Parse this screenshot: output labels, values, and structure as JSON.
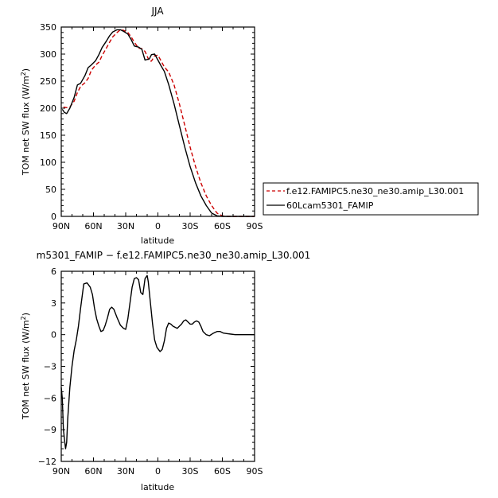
{
  "chart_data": [
    {
      "type": "line",
      "title": "JJA",
      "xlabel": "latitude",
      "ylabel": "TOM net SW flux (W/m²)",
      "xlim": [
        90,
        -90
      ],
      "ylim": [
        0,
        350
      ],
      "x_ticks": [
        "90N",
        "60N",
        "30N",
        "0",
        "30S",
        "60S",
        "90S"
      ],
      "x_tick_values": [
        90,
        60,
        30,
        0,
        -30,
        -60,
        -90
      ],
      "y_ticks": [
        "0",
        "50",
        "100",
        "150",
        "200",
        "250",
        "300",
        "350"
      ],
      "y_tick_values": [
        0,
        50,
        100,
        150,
        200,
        250,
        300,
        350
      ],
      "legend_position": "right",
      "series": [
        {
          "name": "f.e12.FAMIPC5.ne30_ne30.amip_L30.001",
          "color": "#cc0000",
          "dash": "dashed",
          "x": [
            88,
            85,
            82,
            78,
            75,
            72,
            68,
            65,
            62,
            58,
            55,
            52,
            48,
            45,
            42,
            38,
            35,
            32,
            28,
            25,
            22,
            18,
            15,
            12,
            8,
            6,
            3,
            0,
            -3,
            -6,
            -10,
            -15,
            -20,
            -25,
            -30,
            -35,
            -40,
            -45,
            -50,
            -55,
            -60,
            -65,
            -70,
            -75,
            -80,
            -85,
            -90
          ],
          "y": [
            202,
            201,
            202,
            213,
            229,
            240,
            247,
            255,
            270,
            280,
            285,
            297,
            311,
            322,
            332,
            340,
            345,
            344,
            340,
            332,
            322,
            311,
            310,
            305,
            287,
            287,
            297,
            298,
            287,
            276,
            267,
            243,
            208,
            168,
            128,
            92,
            62,
            38,
            20,
            6,
            1,
            0,
            0,
            0,
            0,
            0,
            0
          ]
        },
        {
          "name": "60Lcam5301_FAMIP",
          "color": "#000000",
          "dash": "solid",
          "x": [
            89,
            87,
            85,
            82,
            78,
            75,
            72,
            68,
            65,
            62,
            58,
            55,
            52,
            48,
            45,
            42,
            38,
            35,
            32,
            28,
            25,
            22,
            18,
            15,
            12,
            8,
            6,
            3,
            0,
            -3,
            -6,
            -10,
            -15,
            -20,
            -25,
            -30,
            -35,
            -40,
            -45,
            -50,
            -55,
            -60,
            -65,
            -70,
            -75,
            -80,
            -85,
            -90
          ],
          "y": [
            198,
            192,
            190,
            200,
            220,
            243,
            246,
            260,
            275,
            280,
            288,
            299,
            312,
            324,
            334,
            341,
            345,
            345,
            342,
            337,
            327,
            315,
            313,
            309,
            289,
            291,
            299,
            300,
            289,
            278,
            268,
            244,
            208,
            168,
            128,
            92,
            62,
            38,
            20,
            6,
            1,
            0,
            0,
            0,
            0,
            0,
            0,
            0
          ]
        }
      ]
    },
    {
      "type": "line",
      "title": "m5301_FAMIP − f.e12.FAMIPC5.ne30_ne30.amip_L30.001",
      "xlabel": "latitude",
      "ylabel": "TOM net SW flux (W/m²)",
      "xlim": [
        90,
        -90
      ],
      "ylim": [
        -12,
        6
      ],
      "x_ticks": [
        "90N",
        "60N",
        "30N",
        "0",
        "30S",
        "60S",
        "90S"
      ],
      "x_tick_values": [
        90,
        60,
        30,
        0,
        -30,
        -60,
        -90
      ],
      "y_ticks": [
        "−12",
        "−9",
        "−6",
        "−3",
        "0",
        "3",
        "6"
      ],
      "y_tick_values": [
        -12,
        -9,
        -6,
        -3,
        0,
        3,
        6
      ],
      "series": [
        {
          "name": "",
          "color": "#000000",
          "dash": "solid",
          "x": [
            90,
            89,
            88,
            86,
            85,
            84,
            82,
            80,
            78,
            76,
            74,
            72,
            69,
            66,
            63,
            61,
            59,
            57,
            55,
            53,
            51,
            49,
            47,
            45,
            43,
            41,
            38,
            35,
            32,
            30,
            28,
            26,
            24,
            22,
            20,
            18,
            16,
            14,
            12,
            10,
            9,
            7,
            5,
            3,
            1,
            -2,
            -4,
            -6,
            -8,
            -10,
            -12,
            -14,
            -16,
            -18,
            -20,
            -22,
            -24,
            -26,
            -28,
            -30,
            -32,
            -34,
            -36,
            -38,
            -40,
            -42,
            -45,
            -48,
            -51,
            -53,
            -55,
            -58,
            -61,
            -64,
            -68,
            -72,
            -76,
            -80,
            -85,
            -90
          ],
          "y": [
            -5.0,
            -6.0,
            -9.0,
            -10.8,
            -10.2,
            -8.0,
            -5.0,
            -3.0,
            -1.5,
            -0.5,
            0.8,
            2.5,
            4.8,
            4.9,
            4.5,
            3.8,
            2.5,
            1.5,
            0.8,
            0.3,
            0.4,
            0.9,
            1.6,
            2.4,
            2.6,
            2.4,
            1.6,
            0.9,
            0.6,
            0.5,
            1.5,
            3.0,
            4.5,
            5.3,
            5.4,
            5.2,
            4.0,
            3.8,
            5.3,
            5.6,
            5.0,
            3.0,
            1.0,
            -0.5,
            -1.2,
            -1.6,
            -1.4,
            -0.6,
            0.6,
            1.1,
            1.0,
            0.8,
            0.7,
            0.6,
            0.8,
            1.0,
            1.3,
            1.4,
            1.2,
            1.0,
            1.0,
            1.2,
            1.3,
            1.2,
            0.8,
            0.3,
            0.0,
            -0.1,
            0.1,
            0.2,
            0.3,
            0.3,
            0.15,
            0.1,
            0.05,
            0.0,
            0.0,
            0.0,
            0.0,
            0.0
          ]
        }
      ]
    }
  ]
}
